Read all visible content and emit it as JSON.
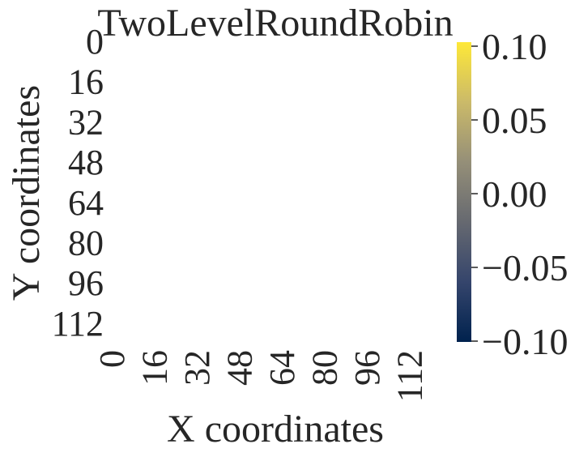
{
  "chart_data": {
    "type": "heatmap",
    "title": "TwoLevelRoundRobin",
    "xlabel": "X coordinates",
    "ylabel": "Y coordinates",
    "x_ticks": [
      "0",
      "16",
      "32",
      "48",
      "64",
      "80",
      "96",
      "112"
    ],
    "y_ticks": [
      "0",
      "16",
      "32",
      "48",
      "64",
      "80",
      "96",
      "112"
    ],
    "values": [],
    "colormap": "cividis",
    "colorbar": {
      "ticks": [
        "0.10",
        "0.05",
        "0.00",
        "−0.05",
        "−0.10"
      ],
      "range": [
        -0.1,
        0.1
      ],
      "colors": [
        "#00224e",
        "#35456c",
        "#666970",
        "#958f78",
        "#cbba69",
        "#fee838"
      ]
    }
  }
}
